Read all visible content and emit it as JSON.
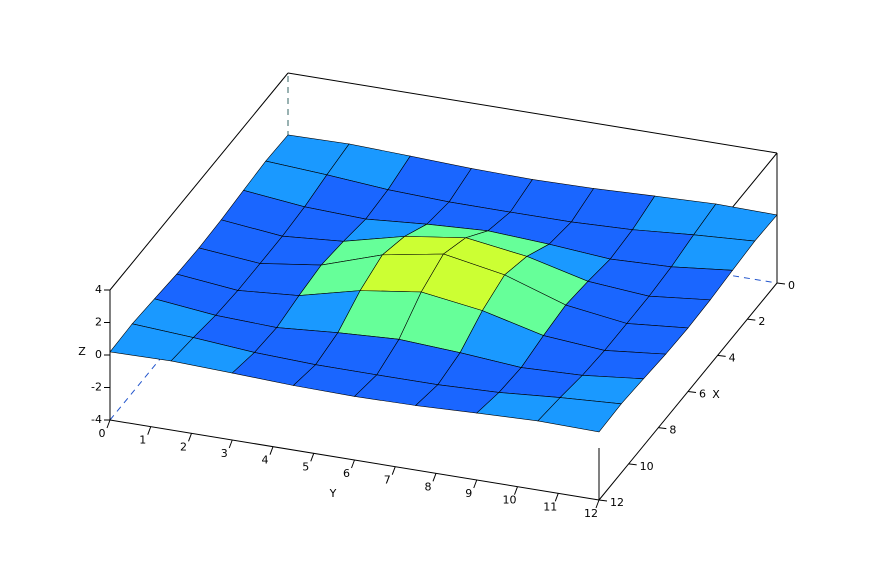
{
  "chart_data": {
    "type": "surface",
    "x_label": "X",
    "y_label": "Y",
    "z_label": "Z",
    "x": [
      0,
      1.5,
      3,
      4.5,
      6,
      7.5,
      9,
      10.5,
      12
    ],
    "y": [
      0,
      1.5,
      3,
      4.5,
      6,
      7.5,
      9,
      10.5,
      12
    ],
    "z": [
      [
        0.19,
        0.25,
        0.12,
        -0.03,
        -0.09,
        -0.03,
        0.12,
        0.25,
        0.19
      ],
      [
        0.25,
        0.02,
        -0.28,
        -0.42,
        -0.43,
        -0.42,
        -0.28,
        0.02,
        0.25
      ],
      [
        0.12,
        -0.28,
        -0.42,
        -0.12,
        0.09,
        -0.12,
        -0.42,
        -0.28,
        0.12
      ],
      [
        -0.03,
        -0.42,
        -0.12,
        0.8,
        1.33,
        0.8,
        -0.12,
        -0.42,
        -0.03
      ],
      [
        -0.09,
        -0.43,
        0.09,
        1.33,
        2.0,
        1.33,
        0.09,
        -0.43,
        -0.09
      ],
      [
        -0.03,
        -0.42,
        -0.12,
        0.8,
        1.33,
        0.8,
        -0.12,
        -0.42,
        -0.03
      ],
      [
        0.12,
        -0.28,
        -0.42,
        -0.12,
        0.09,
        -0.12,
        -0.42,
        -0.28,
        0.12
      ],
      [
        0.25,
        0.02,
        -0.28,
        -0.42,
        -0.43,
        -0.42,
        -0.28,
        0.02,
        0.25
      ],
      [
        0.19,
        0.25,
        0.12,
        -0.03,
        -0.09,
        -0.03,
        0.12,
        0.25,
        0.19
      ]
    ],
    "xlim": [
      0,
      12
    ],
    "ylim": [
      0,
      12
    ],
    "zlim": [
      -4,
      4
    ],
    "xticks": [
      0,
      2,
      4,
      6,
      8,
      10,
      12
    ],
    "yticks": [
      0,
      1,
      2,
      3,
      4,
      5,
      6,
      7,
      8,
      9,
      10,
      11,
      12
    ],
    "zticks": [
      -4,
      -2,
      0,
      2,
      4
    ],
    "colormap": [
      "#1a66ff",
      "#1a99ff",
      "#33ffcc",
      "#66ff99",
      "#99ff66",
      "#ccff33",
      "#ffff00",
      "#ffcc00"
    ]
  }
}
